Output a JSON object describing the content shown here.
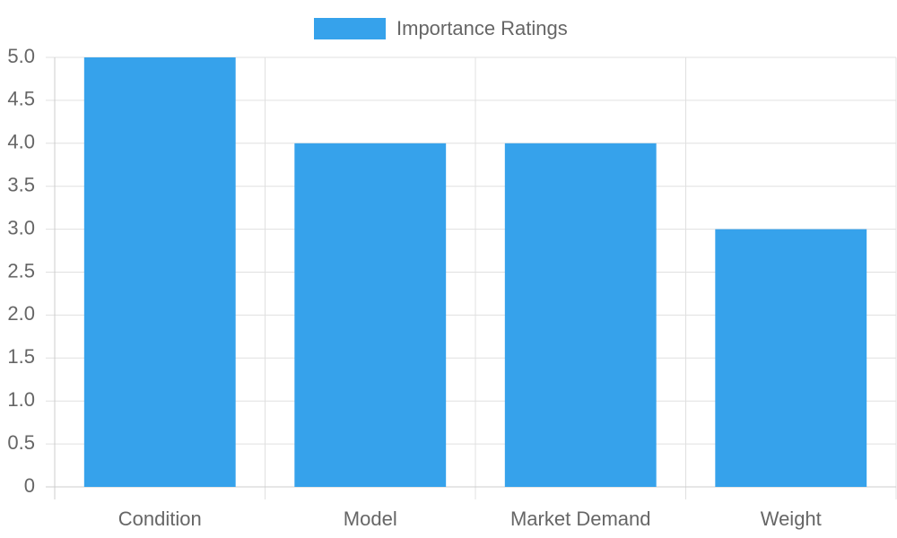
{
  "chart_data": {
    "type": "bar",
    "categories": [
      "Condition",
      "Model",
      "Market Demand",
      "Weight"
    ],
    "series": [
      {
        "name": "Importance Ratings",
        "color": "#36a2eb",
        "values": [
          5,
          4,
          4,
          3
        ]
      }
    ],
    "ylim": [
      0,
      5
    ],
    "yticks": [
      0,
      0.5,
      {
        "value": 1,
        "label": "1.0"
      },
      1.5,
      {
        "value": 2,
        "label": "2.0"
      },
      2.5,
      {
        "value": 3,
        "label": "3.0"
      },
      3.5,
      {
        "value": 4,
        "label": "4.0"
      },
      4.5,
      {
        "value": 5,
        "label": "5.0"
      }
    ],
    "grid": true,
    "legend": "top"
  }
}
